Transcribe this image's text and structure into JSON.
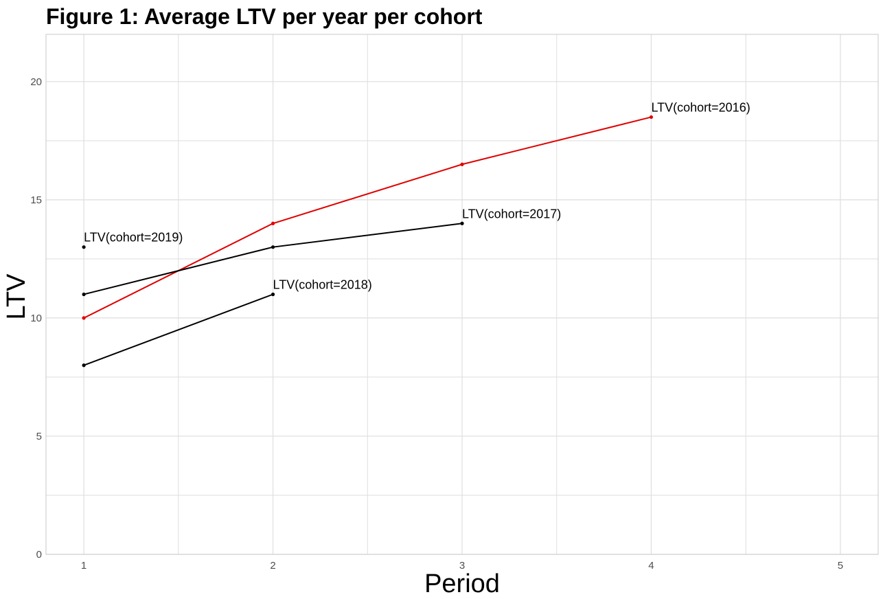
{
  "chart_data": {
    "type": "line",
    "title": "Figure 1: Average LTV per year per cohort",
    "xlabel": "Period",
    "ylabel": "LTV",
    "xlim": [
      0.8,
      5.2
    ],
    "ylim": [
      0,
      22
    ],
    "x_ticks": [
      1,
      2,
      3,
      4,
      5
    ],
    "y_ticks": [
      0,
      5,
      10,
      15,
      20
    ],
    "grid": true,
    "legend": "none",
    "colors": {
      "highlight": "#e00000",
      "default": "#000000",
      "grid": "#dedede",
      "panel_border": "#c8c8c8"
    },
    "series": [
      {
        "name": "LTV(cohort=2016)",
        "color": "#e00000",
        "x": [
          1,
          2,
          3,
          4
        ],
        "y": [
          10,
          14,
          16.5,
          18.5
        ]
      },
      {
        "name": "LTV(cohort=2017)",
        "color": "#000000",
        "x": [
          1,
          2,
          3
        ],
        "y": [
          11,
          13,
          14
        ]
      },
      {
        "name": "LTV(cohort=2018)",
        "color": "#000000",
        "x": [
          1,
          2
        ],
        "y": [
          8,
          11
        ]
      },
      {
        "name": "LTV(cohort=2019)",
        "color": "#000000",
        "x": [
          1
        ],
        "y": [
          13
        ]
      }
    ]
  }
}
